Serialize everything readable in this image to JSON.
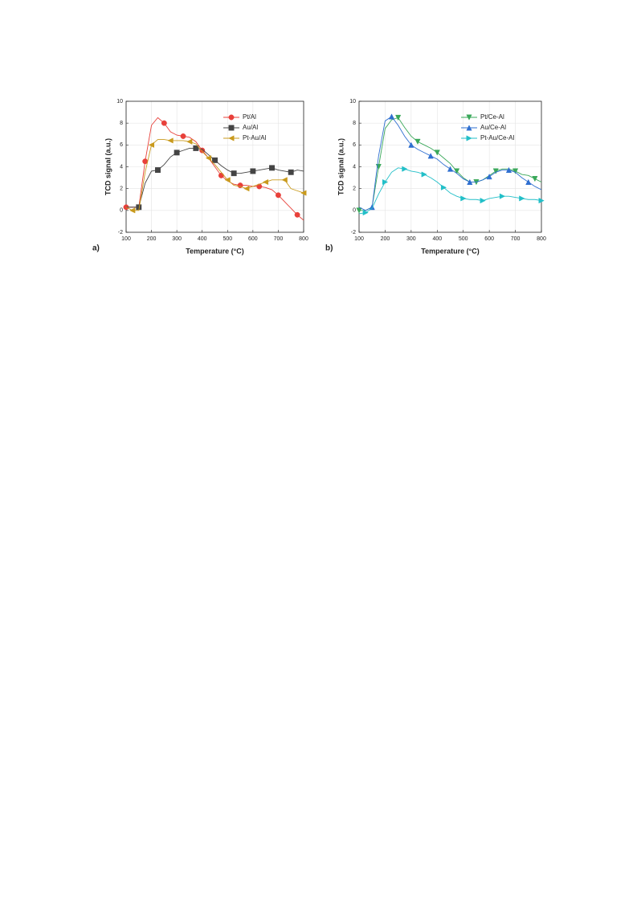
{
  "chart_data": [
    {
      "type": "line",
      "panel_label": "a)",
      "x_label": "Temperature (°C)",
      "y_label": "TCD signal (a.u.)",
      "xlim": [
        100,
        800
      ],
      "ylim": [
        -2,
        10
      ],
      "xticks": [
        100,
        200,
        300,
        400,
        500,
        600,
        700,
        800
      ],
      "yticks": [
        -2,
        0,
        2,
        4,
        6,
        8,
        10
      ],
      "grid": true,
      "legend": "upper right",
      "x": [
        100,
        125,
        150,
        175,
        200,
        225,
        250,
        275,
        300,
        325,
        350,
        375,
        400,
        425,
        450,
        475,
        500,
        525,
        550,
        575,
        600,
        625,
        650,
        675,
        700,
        725,
        750,
        775,
        800
      ],
      "series": [
        {
          "name": "Pt/Al",
          "color": "#e8403a",
          "marker": "circle",
          "values": [
            0.3,
            0.3,
            0.3,
            4.5,
            7.8,
            8.5,
            8.0,
            7.2,
            6.9,
            6.8,
            6.7,
            6.3,
            5.5,
            4.8,
            4.0,
            3.2,
            2.7,
            2.4,
            2.3,
            2.3,
            2.2,
            2.2,
            2.1,
            1.9,
            1.4,
            0.8,
            0.2,
            -0.4,
            -0.9
          ]
        },
        {
          "name": "Au/Al",
          "color": "#444444",
          "marker": "square",
          "values": [
            0.3,
            0.3,
            0.3,
            2.5,
            3.6,
            3.7,
            4.2,
            4.9,
            5.3,
            5.5,
            5.7,
            5.7,
            5.6,
            5.1,
            4.6,
            4.1,
            3.7,
            3.4,
            3.4,
            3.5,
            3.6,
            3.7,
            3.8,
            3.9,
            3.7,
            3.6,
            3.5,
            3.7,
            3.6
          ]
        },
        {
          "name": "Pt-Au/Al",
          "color": "#c99a1c",
          "marker": "triangle-left",
          "values": [
            0.3,
            0,
            0,
            3.5,
            6.0,
            6.5,
            6.5,
            6.4,
            6.4,
            6.4,
            6.3,
            6.1,
            5.4,
            4.8,
            4.2,
            3.5,
            2.8,
            2.3,
            2.2,
            2.0,
            2.2,
            2.4,
            2.6,
            2.8,
            2.8,
            2.8,
            2.0,
            1.8,
            1.6
          ]
        }
      ]
    },
    {
      "type": "line",
      "panel_label": "b)",
      "x_label": "Temperature (°C)",
      "y_label": "TCD signal (a.u.)",
      "xlim": [
        100,
        800
      ],
      "ylim": [
        -2,
        10
      ],
      "xticks": [
        100,
        200,
        300,
        400,
        500,
        600,
        700,
        800
      ],
      "yticks": [
        -2,
        0,
        2,
        4,
        6,
        8,
        10
      ],
      "grid": true,
      "legend": "upper right",
      "x": [
        100,
        125,
        150,
        175,
        200,
        225,
        250,
        275,
        300,
        325,
        350,
        375,
        400,
        425,
        450,
        475,
        500,
        525,
        550,
        575,
        600,
        625,
        650,
        675,
        700,
        725,
        750,
        775,
        800
      ],
      "series": [
        {
          "name": "Pt/Ce-Al",
          "color": "#3aa85a",
          "marker": "triangle-down",
          "values": [
            0,
            0,
            0.3,
            4,
            7.5,
            8.3,
            8.5,
            7.6,
            6.8,
            6.3,
            6.0,
            5.7,
            5.3,
            4.8,
            4.3,
            3.6,
            3.0,
            2.6,
            2.6,
            2.8,
            3.2,
            3.6,
            3.8,
            3.8,
            3.6,
            3.3,
            3.2,
            2.9,
            2.6
          ]
        },
        {
          "name": "Au/Ce-Al",
          "color": "#2f6fd0",
          "marker": "triangle-up",
          "values": [
            0.3,
            0,
            0.3,
            5,
            8.2,
            8.6,
            7.8,
            6.8,
            6.0,
            5.6,
            5.3,
            5.0,
            4.7,
            4.2,
            3.8,
            3.4,
            2.9,
            2.6,
            2.6,
            2.8,
            3.1,
            3.5,
            3.7,
            3.7,
            3.5,
            3.0,
            2.6,
            2.2,
            1.9
          ]
        },
        {
          "name": "Pt-Au/Ce-Al",
          "color": "#22bfc8",
          "marker": "triangle-right",
          "values": [
            -0.3,
            -0.2,
            0.2,
            1.5,
            2.6,
            3.5,
            3.9,
            3.8,
            3.6,
            3.5,
            3.3,
            3.0,
            2.6,
            2.1,
            1.6,
            1.3,
            1.1,
            1.0,
            1.0,
            0.9,
            1.1,
            1.2,
            1.3,
            1.3,
            1.2,
            1.1,
            1.0,
            1.0,
            0.9
          ]
        }
      ]
    }
  ]
}
